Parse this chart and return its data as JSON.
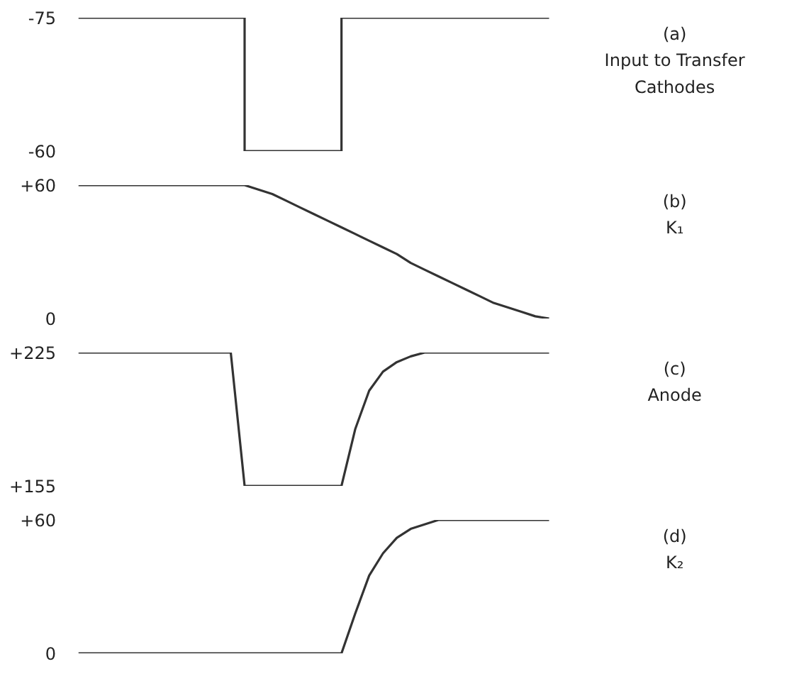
{
  "chart_data": [
    {
      "type": "line",
      "annotations": [
        "(a)",
        "Input to Transfer Cathodes"
      ],
      "categories": [
        null,
        null,
        null,
        null,
        null,
        null,
        null,
        null,
        null,
        null,
        null,
        null,
        null,
        null,
        null,
        null,
        null,
        null,
        null,
        null,
        null,
        null,
        null,
        null,
        null,
        null,
        null,
        null,
        null,
        null,
        null,
        null,
        null,
        null,
        null
      ],
      "series": [
        {
          "type": "step",
          "color": "#333333",
          "values": [
            -75,
            -75,
            -75,
            -75,
            -75,
            -75,
            -75,
            -75,
            -75,
            -75,
            -75,
            -75,
            -60,
            -60,
            -60,
            -60,
            -60,
            -60,
            -60,
            -75,
            -75,
            -75,
            -75,
            -75,
            -75,
            -75,
            -75,
            -75,
            -75,
            -75,
            -75,
            -75,
            -75,
            -75,
            -75
          ]
        }
      ],
      "ylim": [
        -60,
        -75
      ],
      "yticks": [
        {
          "value": -75,
          "label": "-75"
        },
        {
          "value": -60,
          "label": "-60"
        }
      ],
      "tick_labels": "y"
    },
    {
      "type": "line",
      "annotations": [
        "(b)",
        "K₁"
      ],
      "categories": [
        null,
        null,
        null,
        null,
        null,
        null,
        null,
        null,
        null,
        null,
        null,
        null,
        null,
        null,
        null,
        null,
        null,
        null,
        null,
        null,
        null,
        null,
        null,
        null,
        null,
        null,
        null,
        null,
        null,
        null,
        null,
        null,
        null,
        null,
        null
      ],
      "series": [
        {
          "color": "#333333",
          "values": [
            60,
            60,
            60,
            60,
            60,
            60,
            60,
            60,
            60,
            60,
            60,
            60,
            60,
            58,
            56,
            53,
            50,
            47,
            44,
            41,
            38,
            35,
            32,
            29,
            25,
            22,
            19,
            16,
            13,
            10,
            7,
            5,
            3,
            1,
            0
          ]
        }
      ],
      "ylim": [
        0,
        60
      ],
      "yticks": [
        {
          "value": 60,
          "label": "+60"
        },
        0
      ],
      "tick_labels": "y"
    },
    {
      "type": "line",
      "annotations": [
        "(c)",
        "Anode"
      ],
      "categories": [
        null,
        null,
        null,
        null,
        null,
        null,
        null,
        null,
        null,
        null,
        null,
        null,
        null,
        null,
        null,
        null,
        null,
        null,
        null,
        null,
        null,
        null,
        null,
        null,
        null,
        null,
        null,
        null,
        null,
        null,
        null,
        null,
        null,
        null,
        null
      ],
      "series": [
        {
          "color": "#333333",
          "values": [
            225,
            225,
            225,
            225,
            225,
            225,
            225,
            225,
            225,
            225,
            225,
            225,
            155,
            155,
            155,
            155,
            155,
            155,
            155,
            155,
            185,
            205,
            215,
            220,
            223,
            225,
            225,
            225,
            225,
            225,
            225,
            225,
            225,
            225,
            225
          ]
        }
      ],
      "ylim": [
        155,
        225
      ],
      "yticks": [
        {
          "value": 225,
          "label": "+225"
        },
        {
          "value": 155,
          "label": "+155"
        }
      ],
      "tick_labels": "y"
    },
    {
      "type": "line",
      "annotations": [
        "(d)",
        "K₂"
      ],
      "categories": [
        null,
        null,
        null,
        null,
        null,
        null,
        null,
        null,
        null,
        null,
        null,
        null,
        null,
        null,
        null,
        null,
        null,
        null,
        null,
        null,
        null,
        null,
        null,
        null,
        null,
        null,
        null,
        null,
        null,
        null,
        null,
        null,
        null,
        null,
        null
      ],
      "series": [
        {
          "color": "#333333",
          "values": [
            0,
            0,
            0,
            0,
            0,
            0,
            0,
            0,
            0,
            0,
            0,
            0,
            0,
            0,
            0,
            0,
            0,
            0,
            0,
            0,
            18,
            35,
            45,
            52,
            56,
            58,
            60,
            60,
            60,
            60,
            60,
            60,
            60,
            60,
            60
          ]
        }
      ],
      "ylim": [
        0,
        60
      ],
      "yticks": [
        {
          "value": 60,
          "label": "+60"
        },
        0
      ],
      "tick_labels": "y"
    }
  ]
}
